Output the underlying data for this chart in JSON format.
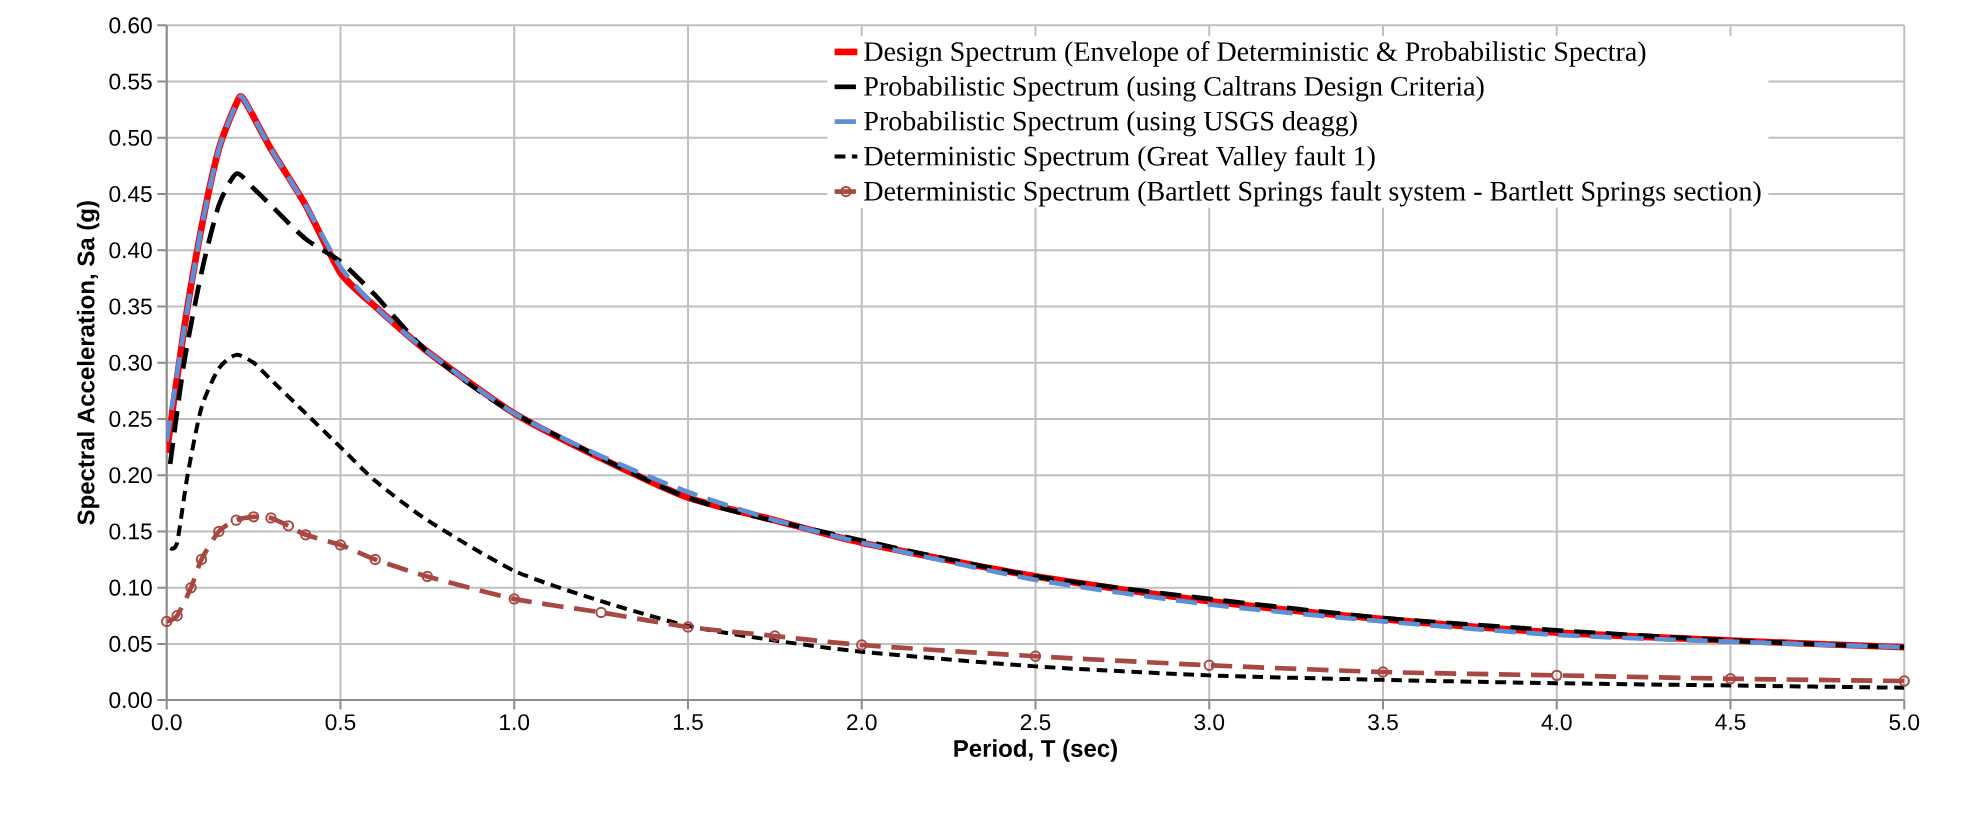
{
  "chart_data": {
    "type": "line",
    "xlabel": "Period, T (sec)",
    "ylabel": "Spectral Acceleration, Sa (g)",
    "xlim": [
      0,
      5
    ],
    "ylim": [
      0,
      0.6
    ],
    "xticks": [
      {
        "value": 0,
        "label": "0.0"
      },
      {
        "value": 0.5,
        "label": "0.5"
      },
      {
        "value": 1,
        "label": "1.0"
      },
      {
        "value": 1.5,
        "label": "1.5"
      },
      {
        "value": 2,
        "label": "2.0"
      },
      {
        "value": 2.5,
        "label": "2.5"
      },
      {
        "value": 3,
        "label": "3.0"
      },
      {
        "value": 3.5,
        "label": "3.5"
      },
      {
        "value": 4,
        "label": "4.0"
      },
      {
        "value": 4.5,
        "label": "4.5"
      },
      {
        "value": 5,
        "label": "5.0"
      }
    ],
    "yticks": [
      {
        "value": 0,
        "label": "0.00"
      },
      {
        "value": 0.05,
        "label": "0.05"
      },
      {
        "value": 0.1,
        "label": "0.10"
      },
      {
        "value": 0.15,
        "label": "0.15"
      },
      {
        "value": 0.2,
        "label": "0.20"
      },
      {
        "value": 0.25,
        "label": "0.25"
      },
      {
        "value": 0.3,
        "label": "0.30"
      },
      {
        "value": 0.35,
        "label": "0.35"
      },
      {
        "value": 0.4,
        "label": "0.40"
      },
      {
        "value": 0.45,
        "label": "0.45"
      },
      {
        "value": 0.5,
        "label": "0.50"
      },
      {
        "value": 0.55,
        "label": "0.55"
      },
      {
        "value": 0.6,
        "label": "0.60"
      }
    ],
    "grid": true,
    "legend": "top right",
    "series": [
      {
        "name": "Design Spectrum (Envelope of Deterministic & Probabilistic Spectra)",
        "color": "#ff0000",
        "line_style": "solid",
        "marker": "none",
        "x": [
          0.0,
          0.05,
          0.1,
          0.15,
          0.2,
          0.22,
          0.3,
          0.4,
          0.5,
          0.6,
          0.75,
          1.0,
          1.25,
          1.5,
          1.75,
          2.0,
          2.5,
          3.0,
          3.5,
          4.0,
          4.5,
          5.0
        ],
        "values": [
          0.22,
          0.33,
          0.42,
          0.49,
          0.53,
          0.535,
          0.49,
          0.44,
          0.38,
          0.35,
          0.31,
          0.255,
          0.215,
          0.18,
          0.16,
          0.14,
          0.11,
          0.088,
          0.072,
          0.06,
          0.053,
          0.047
        ]
      },
      {
        "name": "Probabilistic Spectrum (using Caltrans Design Criteria)",
        "color": "#000000",
        "line_style": "dashed",
        "marker": "none",
        "x": [
          0.01,
          0.05,
          0.1,
          0.15,
          0.2,
          0.25,
          0.3,
          0.4,
          0.5,
          0.6,
          0.75,
          1.0,
          1.5,
          2.0,
          2.5,
          3.0,
          3.5,
          4.0,
          4.5,
          5.0
        ],
        "values": [
          0.21,
          0.3,
          0.38,
          0.44,
          0.468,
          0.455,
          0.44,
          0.41,
          0.39,
          0.36,
          0.31,
          0.255,
          0.18,
          0.142,
          0.11,
          0.09,
          0.073,
          0.062,
          0.053,
          0.047
        ]
      },
      {
        "name": "Probabilistic Spectrum (using USGS deagg)",
        "color": "#5b8fd6",
        "line_style": "dashed",
        "marker": "none",
        "x": [
          0.0,
          0.05,
          0.1,
          0.15,
          0.2,
          0.22,
          0.3,
          0.4,
          0.5,
          0.6,
          0.75,
          1.0,
          1.25,
          1.5,
          1.75,
          2.0,
          2.5,
          3.0,
          3.5,
          4.0,
          4.5,
          5.0
        ],
        "values": [
          0.23,
          0.33,
          0.42,
          0.49,
          0.53,
          0.535,
          0.49,
          0.44,
          0.385,
          0.35,
          0.31,
          0.255,
          0.217,
          0.185,
          0.16,
          0.14,
          0.107,
          0.085,
          0.07,
          0.058,
          0.052,
          0.047
        ]
      },
      {
        "name": "Deterministic Spectrum (Great Valley fault 1)",
        "color": "#000000",
        "line_style": "dotted",
        "marker": "none",
        "x": [
          0.01,
          0.03,
          0.06,
          0.1,
          0.15,
          0.2,
          0.25,
          0.3,
          0.4,
          0.5,
          0.6,
          0.75,
          1.0,
          1.25,
          1.5,
          1.75,
          2.0,
          2.5,
          3.0,
          3.5,
          4.0,
          4.5,
          5.0
        ],
        "values": [
          0.135,
          0.14,
          0.2,
          0.26,
          0.295,
          0.307,
          0.3,
          0.285,
          0.255,
          0.225,
          0.195,
          0.16,
          0.115,
          0.088,
          0.066,
          0.053,
          0.043,
          0.03,
          0.022,
          0.018,
          0.015,
          0.013,
          0.011
        ]
      },
      {
        "name": "Deterministic Spectrum (Bartlett Springs fault system - Bartlett Springs section)",
        "color": "#a84842",
        "line_style": "dashed",
        "marker": "circle",
        "x": [
          0.0,
          0.03,
          0.07,
          0.1,
          0.15,
          0.2,
          0.25,
          0.3,
          0.35,
          0.4,
          0.5,
          0.6,
          0.75,
          1.0,
          1.25,
          1.5,
          1.75,
          2.0,
          2.5,
          3.0,
          3.5,
          4.0,
          4.5,
          5.0
        ],
        "values": [
          0.07,
          0.075,
          0.1,
          0.125,
          0.15,
          0.16,
          0.163,
          0.162,
          0.155,
          0.147,
          0.138,
          0.125,
          0.11,
          0.09,
          0.078,
          0.065,
          0.057,
          0.049,
          0.039,
          0.031,
          0.025,
          0.022,
          0.019,
          0.017
        ]
      }
    ]
  }
}
